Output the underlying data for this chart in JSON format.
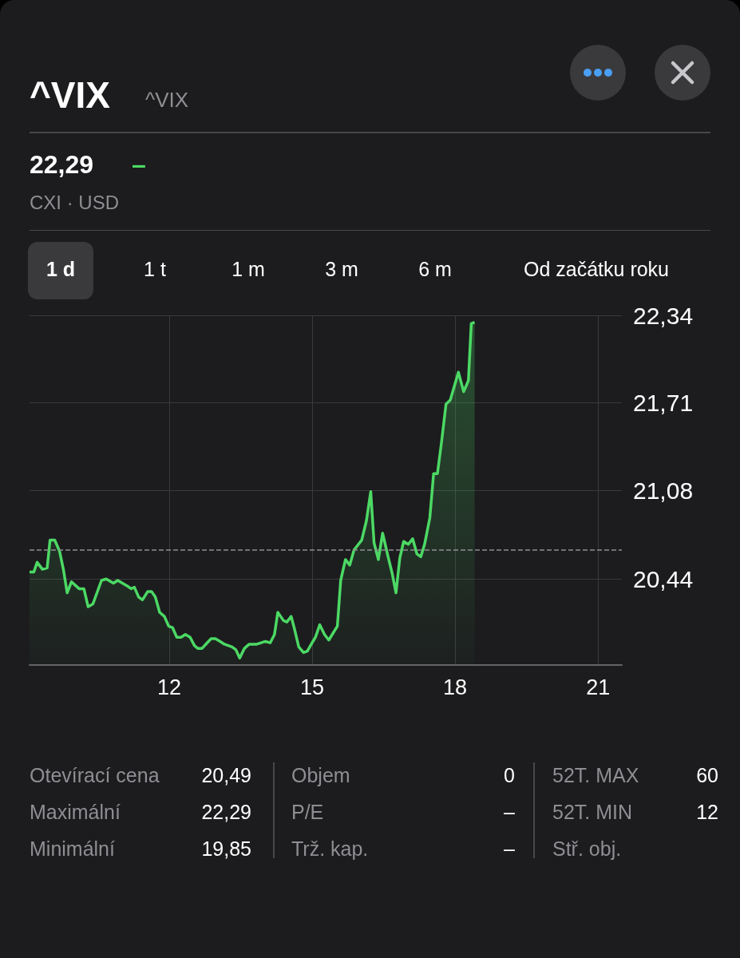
{
  "chart_data": {
    "type": "area",
    "title": "^VIX",
    "subtitle": "^VIX",
    "annotations": [
      "22,29",
      "–",
      "CXI · USD",
      "1 d",
      "1 t",
      "1 m",
      "3 m",
      "6 m",
      "Od začátku roku",
      "Otevírací cena",
      "20,49",
      "Maximální",
      "22,29",
      "Minimální",
      "19,85",
      "Objem",
      "0",
      "P/E",
      "–",
      "Trž. kap.",
      "–",
      "52T. MAX",
      "60",
      "52T. MIN",
      "12",
      "Stř. obj."
    ],
    "x": [
      9.07,
      9.16,
      9.23,
      9.34,
      9.44,
      9.5,
      9.6,
      9.7,
      9.78,
      9.86,
      9.95,
      10.11,
      10.21,
      10.3,
      10.4,
      10.58,
      10.68,
      10.83,
      10.92,
      11.12,
      11.2,
      11.27,
      11.36,
      11.44,
      11.55,
      11.63,
      11.71,
      11.8,
      11.9,
      11.99,
      12.07,
      12.16,
      12.25,
      12.34,
      12.44,
      12.53,
      12.6,
      12.69,
      12.88,
      12.97,
      13.07,
      13.16,
      13.32,
      13.4,
      13.48,
      13.58,
      13.68,
      13.84,
      14.02,
      14.12,
      14.21,
      14.28,
      14.4,
      14.47,
      14.56,
      14.63,
      14.72,
      14.82,
      14.9,
      15.0,
      15.07,
      15.16,
      15.26,
      15.35,
      15.44,
      15.53,
      15.6,
      15.7,
      15.79,
      15.88,
      15.95,
      16.04,
      16.14,
      16.23,
      16.3,
      16.39,
      16.48,
      16.58,
      16.68,
      16.76,
      16.84,
      16.92,
      17.02,
      17.11,
      17.2,
      17.28,
      17.36,
      17.47,
      17.55,
      17.63,
      17.71,
      17.81,
      17.9,
      18.07,
      18.18,
      18.28,
      18.34,
      18.41
    ],
    "series": [
      {
        "color": "#4cd964",
        "values": [
          20.49,
          20.49,
          20.56,
          20.51,
          20.52,
          20.72,
          20.72,
          20.64,
          20.51,
          20.34,
          20.42,
          20.37,
          20.37,
          20.24,
          20.26,
          20.43,
          20.44,
          20.41,
          20.43,
          20.39,
          20.37,
          20.38,
          20.31,
          20.29,
          20.35,
          20.35,
          20.31,
          20.2,
          20.17,
          20.1,
          20.09,
          20.02,
          20.02,
          20.04,
          20.02,
          19.96,
          19.94,
          19.94,
          20.01,
          20.01,
          19.99,
          19.97,
          19.95,
          19.93,
          19.87,
          19.94,
          19.97,
          19.97,
          19.99,
          19.98,
          20.04,
          20.2,
          20.14,
          20.13,
          20.17,
          20.08,
          19.95,
          19.91,
          19.92,
          19.98,
          20.02,
          20.11,
          20.04,
          20.0,
          20.05,
          20.1,
          20.43,
          20.58,
          20.54,
          20.65,
          20.68,
          20.72,
          20.86,
          21.07,
          20.7,
          20.58,
          20.77,
          20.62,
          20.48,
          20.34,
          20.59,
          20.71,
          20.69,
          20.73,
          20.62,
          20.6,
          20.69,
          20.88,
          21.2,
          21.2,
          21.41,
          21.7,
          21.73,
          21.93,
          21.79,
          21.87,
          22.28,
          22.29
        ]
      }
    ],
    "xlim": [
      9.07,
      21.5
    ],
    "xticks": [
      12,
      15,
      18,
      21
    ],
    "ylim": [
      19.82,
      22.34
    ],
    "yticks": [
      {
        "value": 20.44,
        "label": "20,44"
      },
      {
        "value": 21.08,
        "label": "21,08"
      },
      {
        "value": 21.71,
        "label": "21,71"
      },
      {
        "value": 22.34,
        "label": "22,34"
      }
    ],
    "ref_lines": [
      {
        "axis": "y",
        "value": 20.65,
        "color": "#8e8e93",
        "line_style": "dashed"
      }
    ],
    "grid": true
  }
}
